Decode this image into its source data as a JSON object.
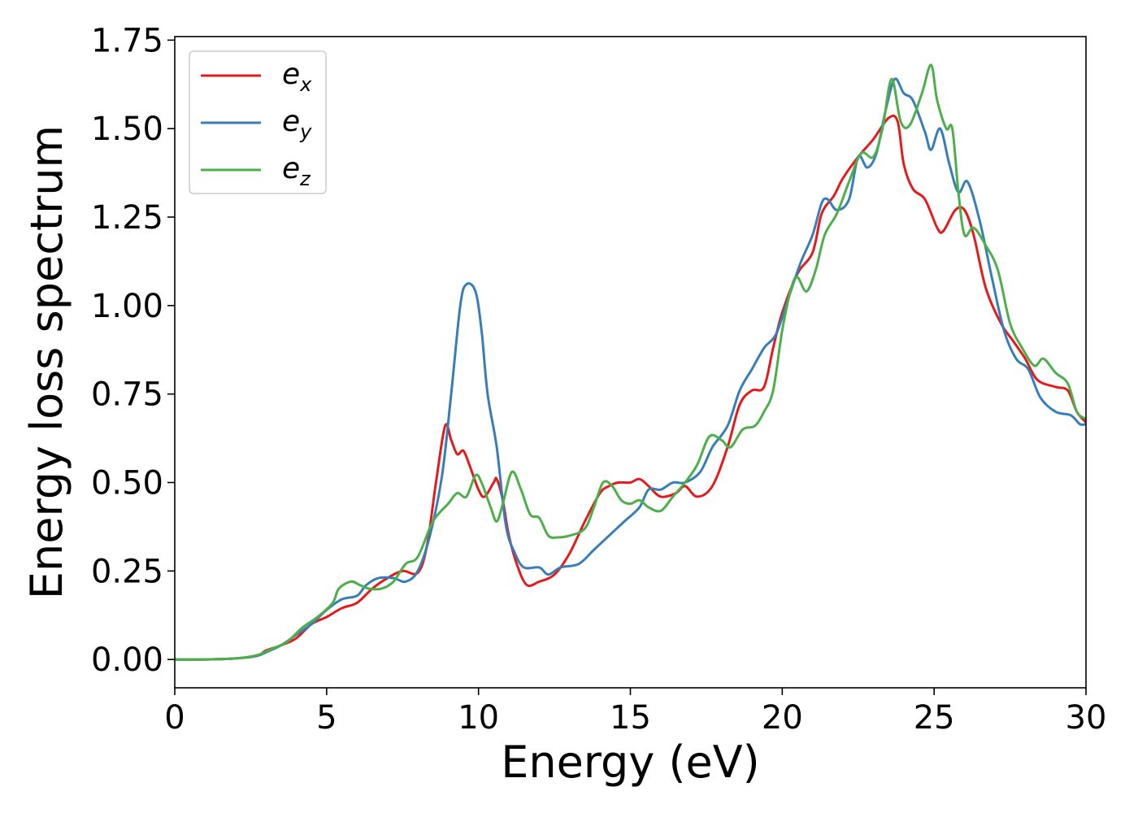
{
  "chart_data": {
    "type": "line",
    "title": "",
    "xlabel": "Energy (eV)",
    "ylabel": "Energy loss spectrum",
    "xlim": [
      0,
      30
    ],
    "ylim": [
      -0.08,
      1.76
    ],
    "xticks": [
      0,
      5,
      10,
      15,
      20,
      25,
      30
    ],
    "xtick_labels": [
      "0",
      "5",
      "10",
      "15",
      "20",
      "25",
      "30"
    ],
    "yticks": [
      0.0,
      0.25,
      0.5,
      0.75,
      1.0,
      1.25,
      1.5,
      1.75
    ],
    "ytick_labels": [
      "0.00",
      "0.25",
      "0.50",
      "0.75",
      "1.00",
      "1.25",
      "1.50",
      "1.75"
    ],
    "grid": false,
    "legend_position": "top-left",
    "series": [
      {
        "name": "e",
        "subscript": "x",
        "color": "#e41a1c",
        "points": [
          [
            0,
            0.0
          ],
          [
            1,
            0.0
          ],
          [
            2,
            0.003
          ],
          [
            2.7,
            0.01
          ],
          [
            3,
            0.025
          ],
          [
            3.5,
            0.04
          ],
          [
            4,
            0.06
          ],
          [
            4.5,
            0.1
          ],
          [
            5,
            0.12
          ],
          [
            5.5,
            0.145
          ],
          [
            6,
            0.16
          ],
          [
            6.5,
            0.2
          ],
          [
            7,
            0.23
          ],
          [
            7.5,
            0.25
          ],
          [
            8,
            0.245
          ],
          [
            8.3,
            0.32
          ],
          [
            8.6,
            0.5
          ],
          [
            8.9,
            0.66
          ],
          [
            9.1,
            0.62
          ],
          [
            9.3,
            0.58
          ],
          [
            9.5,
            0.59
          ],
          [
            9.7,
            0.55
          ],
          [
            10,
            0.48
          ],
          [
            10.2,
            0.46
          ],
          [
            10.5,
            0.5
          ],
          [
            10.6,
            0.51
          ],
          [
            10.8,
            0.45
          ],
          [
            11,
            0.35
          ],
          [
            11.3,
            0.26
          ],
          [
            11.6,
            0.21
          ],
          [
            12,
            0.22
          ],
          [
            12.5,
            0.24
          ],
          [
            13,
            0.3
          ],
          [
            13.5,
            0.39
          ],
          [
            14,
            0.47
          ],
          [
            14.3,
            0.49
          ],
          [
            14.6,
            0.5
          ],
          [
            15,
            0.5
          ],
          [
            15.3,
            0.51
          ],
          [
            15.6,
            0.49
          ],
          [
            16,
            0.46
          ],
          [
            16.5,
            0.47
          ],
          [
            16.8,
            0.49
          ],
          [
            17.2,
            0.46
          ],
          [
            17.7,
            0.49
          ],
          [
            18.2,
            0.6
          ],
          [
            18.6,
            0.72
          ],
          [
            19,
            0.76
          ],
          [
            19.4,
            0.77
          ],
          [
            19.7,
            0.88
          ],
          [
            20,
            0.98
          ],
          [
            20.5,
            1.09
          ],
          [
            21,
            1.15
          ],
          [
            21.3,
            1.26
          ],
          [
            21.7,
            1.31
          ],
          [
            22,
            1.36
          ],
          [
            22.5,
            1.42
          ],
          [
            23,
            1.47
          ],
          [
            23.5,
            1.53
          ],
          [
            23.8,
            1.52
          ],
          [
            24,
            1.4
          ],
          [
            24.3,
            1.33
          ],
          [
            24.7,
            1.3
          ],
          [
            25.1,
            1.22
          ],
          [
            25.3,
            1.21
          ],
          [
            25.7,
            1.27
          ],
          [
            26,
            1.27
          ],
          [
            26.3,
            1.2
          ],
          [
            26.7,
            1.05
          ],
          [
            27.2,
            0.95
          ],
          [
            27.6,
            0.9
          ],
          [
            28,
            0.85
          ],
          [
            28.4,
            0.79
          ],
          [
            29,
            0.77
          ],
          [
            29.4,
            0.76
          ],
          [
            29.7,
            0.7
          ],
          [
            30,
            0.67
          ]
        ]
      },
      {
        "name": "e",
        "subscript": "y",
        "color": "#377eb8",
        "points": [
          [
            0,
            0.0
          ],
          [
            1,
            0.0
          ],
          [
            2,
            0.003
          ],
          [
            2.7,
            0.01
          ],
          [
            3,
            0.02
          ],
          [
            3.5,
            0.04
          ],
          [
            4,
            0.07
          ],
          [
            4.5,
            0.1
          ],
          [
            5,
            0.14
          ],
          [
            5.5,
            0.17
          ],
          [
            6,
            0.18
          ],
          [
            6.3,
            0.21
          ],
          [
            6.7,
            0.23
          ],
          [
            7.2,
            0.23
          ],
          [
            7.6,
            0.22
          ],
          [
            8,
            0.25
          ],
          [
            8.4,
            0.35
          ],
          [
            8.8,
            0.52
          ],
          [
            9.1,
            0.75
          ],
          [
            9.4,
            1.0
          ],
          [
            9.6,
            1.06
          ],
          [
            9.9,
            1.04
          ],
          [
            10.1,
            0.93
          ],
          [
            10.3,
            0.75
          ],
          [
            10.6,
            0.6
          ],
          [
            10.9,
            0.38
          ],
          [
            11.2,
            0.3
          ],
          [
            11.5,
            0.26
          ],
          [
            12,
            0.26
          ],
          [
            12.3,
            0.24
          ],
          [
            12.7,
            0.26
          ],
          [
            13.3,
            0.27
          ],
          [
            13.8,
            0.31
          ],
          [
            14.3,
            0.35
          ],
          [
            14.8,
            0.39
          ],
          [
            15.3,
            0.43
          ],
          [
            15.6,
            0.48
          ],
          [
            16,
            0.48
          ],
          [
            16.4,
            0.5
          ],
          [
            16.8,
            0.5
          ],
          [
            17.3,
            0.53
          ],
          [
            17.7,
            0.6
          ],
          [
            18.2,
            0.66
          ],
          [
            18.6,
            0.76
          ],
          [
            19,
            0.82
          ],
          [
            19.4,
            0.88
          ],
          [
            19.8,
            0.92
          ],
          [
            20.2,
            1.02
          ],
          [
            20.6,
            1.12
          ],
          [
            21,
            1.2
          ],
          [
            21.3,
            1.29
          ],
          [
            21.5,
            1.3
          ],
          [
            21.8,
            1.27
          ],
          [
            22.2,
            1.3
          ],
          [
            22.5,
            1.42
          ],
          [
            22.8,
            1.39
          ],
          [
            23.1,
            1.43
          ],
          [
            23.4,
            1.55
          ],
          [
            23.7,
            1.64
          ],
          [
            24,
            1.6
          ],
          [
            24.3,
            1.58
          ],
          [
            24.7,
            1.49
          ],
          [
            24.9,
            1.44
          ],
          [
            25.2,
            1.5
          ],
          [
            25.5,
            1.4
          ],
          [
            25.8,
            1.32
          ],
          [
            26.1,
            1.35
          ],
          [
            26.5,
            1.24
          ],
          [
            26.9,
            1.08
          ],
          [
            27.3,
            0.93
          ],
          [
            27.7,
            0.85
          ],
          [
            28.1,
            0.82
          ],
          [
            28.5,
            0.74
          ],
          [
            29,
            0.7
          ],
          [
            29.5,
            0.69
          ],
          [
            29.8,
            0.665
          ],
          [
            30,
            0.665
          ]
        ]
      },
      {
        "name": "e",
        "subscript": "z",
        "color": "#4daf4a",
        "points": [
          [
            0,
            0.0
          ],
          [
            1,
            0.0
          ],
          [
            2,
            0.003
          ],
          [
            2.7,
            0.012
          ],
          [
            3.2,
            0.03
          ],
          [
            3.7,
            0.05
          ],
          [
            4.2,
            0.09
          ],
          [
            4.7,
            0.12
          ],
          [
            5.2,
            0.16
          ],
          [
            5.4,
            0.2
          ],
          [
            5.8,
            0.22
          ],
          [
            6.1,
            0.21
          ],
          [
            6.4,
            0.2
          ],
          [
            6.8,
            0.2
          ],
          [
            7.2,
            0.22
          ],
          [
            7.6,
            0.27
          ],
          [
            8,
            0.29
          ],
          [
            8.5,
            0.39
          ],
          [
            9,
            0.44
          ],
          [
            9.3,
            0.47
          ],
          [
            9.6,
            0.46
          ],
          [
            9.9,
            0.52
          ],
          [
            10.1,
            0.5
          ],
          [
            10.4,
            0.43
          ],
          [
            10.6,
            0.39
          ],
          [
            10.8,
            0.44
          ],
          [
            11.1,
            0.53
          ],
          [
            11.4,
            0.48
          ],
          [
            11.7,
            0.41
          ],
          [
            12,
            0.4
          ],
          [
            12.3,
            0.35
          ],
          [
            12.6,
            0.345
          ],
          [
            13,
            0.35
          ],
          [
            13.5,
            0.37
          ],
          [
            13.8,
            0.43
          ],
          [
            14.1,
            0.5
          ],
          [
            14.4,
            0.49
          ],
          [
            14.7,
            0.45
          ],
          [
            15,
            0.44
          ],
          [
            15.3,
            0.45
          ],
          [
            15.6,
            0.43
          ],
          [
            16,
            0.42
          ],
          [
            16.4,
            0.46
          ],
          [
            16.8,
            0.5
          ],
          [
            17.2,
            0.55
          ],
          [
            17.6,
            0.63
          ],
          [
            18,
            0.62
          ],
          [
            18.3,
            0.6
          ],
          [
            18.7,
            0.65
          ],
          [
            19.1,
            0.66
          ],
          [
            19.4,
            0.7
          ],
          [
            19.7,
            0.76
          ],
          [
            20,
            0.93
          ],
          [
            20.3,
            1.05
          ],
          [
            20.5,
            1.08
          ],
          [
            20.8,
            1.04
          ],
          [
            21.1,
            1.1
          ],
          [
            21.4,
            1.2
          ],
          [
            21.8,
            1.26
          ],
          [
            22.2,
            1.35
          ],
          [
            22.6,
            1.43
          ],
          [
            23,
            1.42
          ],
          [
            23.3,
            1.5
          ],
          [
            23.6,
            1.64
          ],
          [
            23.9,
            1.52
          ],
          [
            24.2,
            1.51
          ],
          [
            24.6,
            1.6
          ],
          [
            24.9,
            1.68
          ],
          [
            25.1,
            1.58
          ],
          [
            25.4,
            1.5
          ],
          [
            25.6,
            1.5
          ],
          [
            25.8,
            1.32
          ],
          [
            26,
            1.2
          ],
          [
            26.3,
            1.22
          ],
          [
            26.7,
            1.17
          ],
          [
            27.1,
            1.1
          ],
          [
            27.5,
            0.95
          ],
          [
            27.9,
            0.88
          ],
          [
            28.3,
            0.83
          ],
          [
            28.6,
            0.85
          ],
          [
            29,
            0.81
          ],
          [
            29.4,
            0.78
          ],
          [
            29.7,
            0.7
          ],
          [
            30,
            0.68
          ]
        ]
      }
    ]
  }
}
